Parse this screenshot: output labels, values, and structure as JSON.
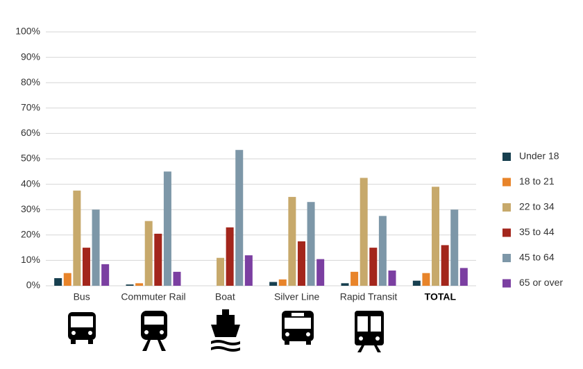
{
  "chart_data": {
    "type": "bar",
    "categories": [
      "Bus",
      "Commuter Rail",
      "Boat",
      "Silver Line",
      "Rapid Transit",
      "TOTAL"
    ],
    "series": [
      {
        "name": "Under 18",
        "color": "#173f4f",
        "values": [
          3,
          0.5,
          0,
          1.5,
          1,
          2
        ]
      },
      {
        "name": "18 to 21",
        "color": "#e8842a",
        "values": [
          5,
          1,
          0,
          2.5,
          5.5,
          5
        ]
      },
      {
        "name": "22 to 34",
        "color": "#c7a96b",
        "values": [
          37.5,
          25.5,
          11,
          35,
          42.5,
          39
        ]
      },
      {
        "name": "35 to 44",
        "color": "#a3261c",
        "values": [
          15,
          20.5,
          23,
          17.5,
          15,
          16
        ]
      },
      {
        "name": "45 to 64",
        "color": "#7d97a8",
        "values": [
          30,
          45,
          53.5,
          33,
          27.5,
          30
        ]
      },
      {
        "name": "65 or over",
        "color": "#7b3fa1",
        "values": [
          8.5,
          5.5,
          12,
          10.5,
          6,
          7
        ]
      }
    ],
    "ylim": [
      0,
      100
    ],
    "yticks": [
      {
        "value": 0,
        "label": "0%"
      },
      {
        "value": 10,
        "label": "10%"
      },
      {
        "value": 20,
        "label": "20%"
      },
      {
        "value": 30,
        "label": "30%"
      },
      {
        "value": 40,
        "label": "40%"
      },
      {
        "value": 50,
        "label": "50%"
      },
      {
        "value": 60,
        "label": "60%"
      },
      {
        "value": 70,
        "label": "70%"
      },
      {
        "value": 80,
        "label": "80%"
      },
      {
        "value": 90,
        "label": "90%"
      },
      {
        "value": 100,
        "label": "100%"
      }
    ],
    "grid": true,
    "legend": "right"
  }
}
